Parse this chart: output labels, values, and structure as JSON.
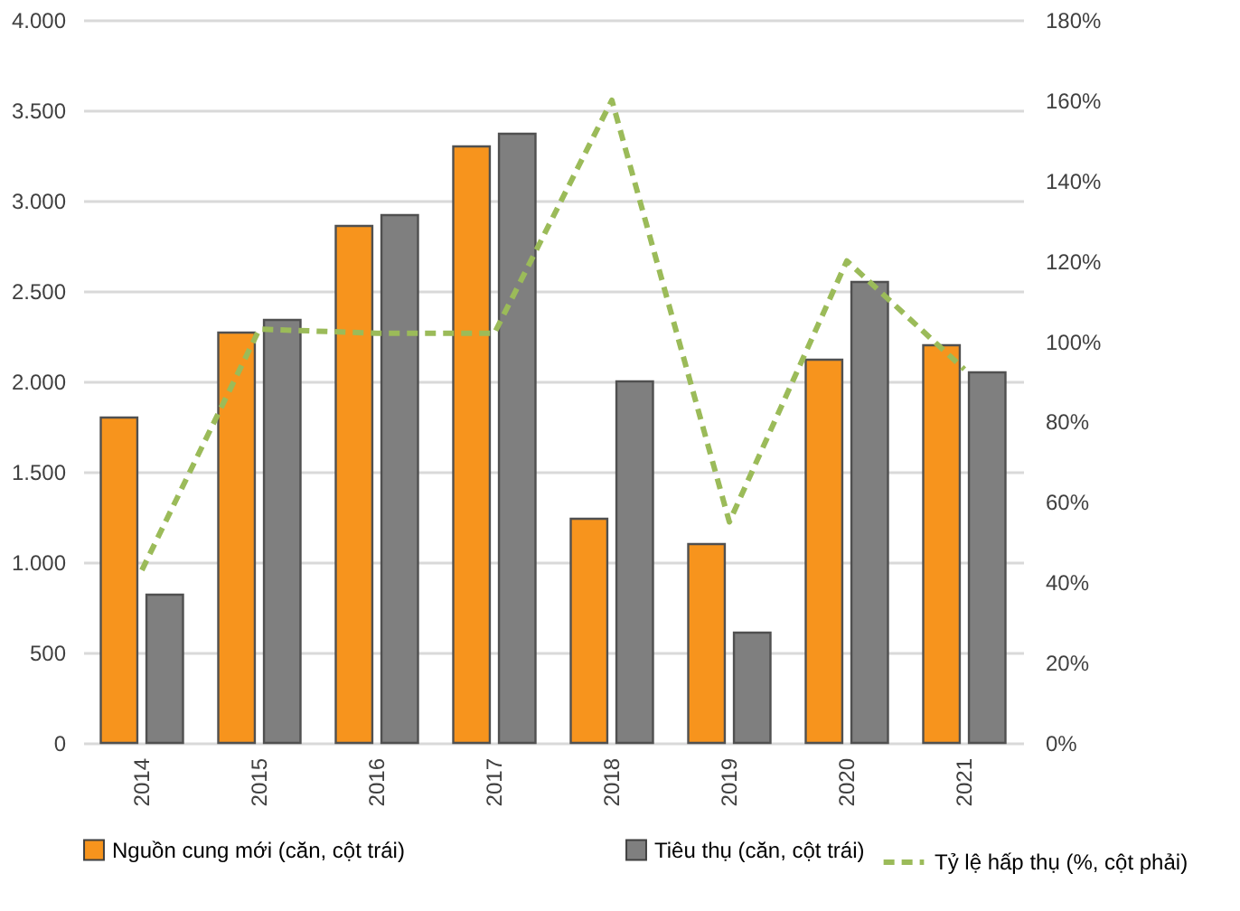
{
  "chart_data": {
    "type": "bar",
    "categories": [
      "2014",
      "2015",
      "2016",
      "2017",
      "2018",
      "2019",
      "2020",
      "2021"
    ],
    "series": [
      {
        "name": "Nguồn cung mới (căn, cột trái)",
        "color": "#f7941d",
        "values": [
          1800,
          2270,
          2860,
          3300,
          1240,
          1100,
          2120,
          2200
        ]
      },
      {
        "name": "Tiêu thụ (căn, cột trái)",
        "color": "#7f7f7f",
        "values": [
          820,
          2340,
          2920,
          3370,
          2000,
          610,
          2550,
          2050
        ]
      },
      {
        "name": "Tỷ lệ hấp thụ (%, cột phải)",
        "color": "#9bbb59",
        "type": "line",
        "axis": "y2",
        "line_style": "dashed",
        "values": [
          43,
          103,
          102,
          102,
          160,
          55,
          120,
          93
        ]
      }
    ],
    "ylim": [
      0,
      4000
    ],
    "yticks": [
      {
        "value": 0,
        "label": "0"
      },
      {
        "value": 500,
        "label": "500"
      },
      {
        "value": 1000,
        "label": "1.000"
      },
      {
        "value": 1500,
        "label": "1.500"
      },
      {
        "value": 2000,
        "label": "2.000"
      },
      {
        "value": 2500,
        "label": "2.500"
      },
      {
        "value": 3000,
        "label": "3.000"
      },
      {
        "value": 3500,
        "label": "3.500"
      },
      {
        "value": 4000,
        "label": "4.000"
      }
    ],
    "y2lim": [
      0,
      180
    ],
    "y2ticks": [
      {
        "value": 0,
        "label": "0%"
      },
      {
        "value": 20,
        "label": "20%"
      },
      {
        "value": 40,
        "label": "40%"
      },
      {
        "value": 60,
        "label": "60%"
      },
      {
        "value": 80,
        "label": "80%"
      },
      {
        "value": 100,
        "label": "100%"
      },
      {
        "value": 120,
        "label": "120%"
      },
      {
        "value": 140,
        "label": "140%"
      },
      {
        "value": 160,
        "label": "160%"
      },
      {
        "value": 180,
        "label": "180%"
      }
    ],
    "grid": "y",
    "legend": "bottom"
  }
}
